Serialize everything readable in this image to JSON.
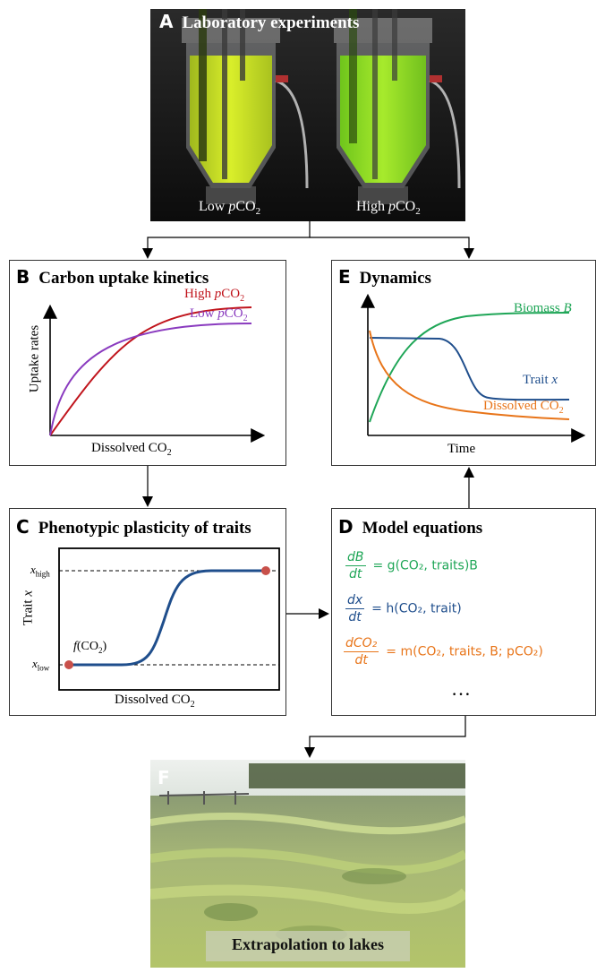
{
  "colors": {
    "high": "#c0141c",
    "low": "#8a3bbf",
    "biomass": "#1fa657",
    "trait": "#1f4e8c",
    "co2": "#e8751a",
    "dot": "#c8504a"
  },
  "panelA": {
    "letter": "A",
    "title": "Laboratory experiments",
    "label_low_prefix": "Low ",
    "label_high_prefix": "High "
  },
  "panelB": {
    "letter": "B",
    "title": "Carbon uptake kinetics",
    "series_high": "High pCO2",
    "series_low": "Low pCO2",
    "xlabel": "Dissolved CO2",
    "ylabel": "Uptake rates"
  },
  "panelC": {
    "letter": "C",
    "title": "Phenotypic plasticity of traits",
    "ylabel": "Trait x",
    "xlabel": "Dissolved CO2",
    "x_high": "x_high",
    "x_low": "x_low",
    "func_label": "f(CO2)"
  },
  "panelD": {
    "letter": "D",
    "title": "Model equations",
    "eq1_num": "dB",
    "eq1_den": "dt",
    "eq1_rhs": "= g(CO₂, traits)B",
    "eq2_num": "dx",
    "eq2_den": "dt",
    "eq2_rhs": "= h(CO₂, trait)",
    "eq3_num": "dCO₂",
    "eq3_den": "dt",
    "eq3_rhs": "= m(CO₂, traits, B; pCO₂)",
    "ellipsis": "…"
  },
  "panelE": {
    "letter": "E",
    "title": "Dynamics",
    "series_biomass": "Biomass B",
    "series_trait": "Trait x",
    "series_co2": "Dissolved CO2",
    "xlabel": "Time"
  },
  "panelF": {
    "letter": "F",
    "caption": "Extrapolation to lakes"
  }
}
